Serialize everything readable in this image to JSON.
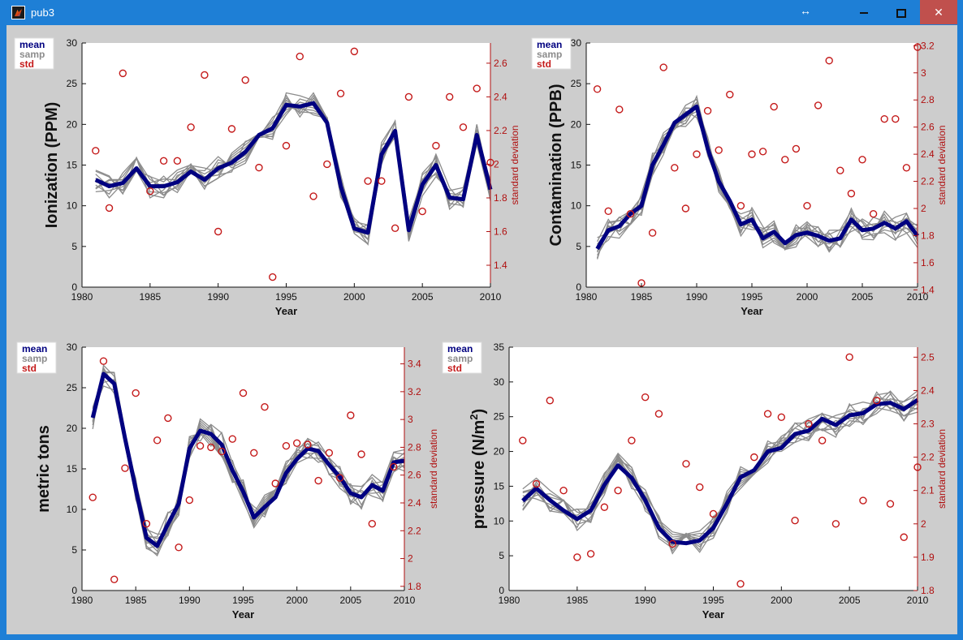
{
  "window": {
    "title": "pub3",
    "resize_icon": "↔",
    "close_label": "✕"
  },
  "chart_data": [
    {
      "type": "line",
      "ylabel": "Ionization (PPM)",
      "ylabel_sup": "",
      "ylabel_end": "",
      "xlabel": "Year",
      "y2label": "standard deviation",
      "xlim": [
        1980,
        2010
      ],
      "ylim": [
        0,
        30
      ],
      "y2lim": [
        1.27,
        2.72
      ],
      "xticks": [
        1980,
        1985,
        1990,
        1995,
        2000,
        2005,
        2010
      ],
      "yticks": [
        0,
        5,
        10,
        15,
        20,
        25,
        30
      ],
      "y2ticks": [
        1.4,
        1.6,
        1.8,
        2.0,
        2.2,
        2.4,
        2.6
      ],
      "y2ticklabels": [
        "1.4",
        "1.6",
        "1.8",
        "2",
        "2.2",
        "2.4",
        "2.6"
      ],
      "legend": [
        "mean",
        "samp",
        "std"
      ],
      "legend_position": "top-left",
      "colors": {
        "mean": "#000080",
        "samp": "#8c8c8c",
        "std": "#c41a1a"
      },
      "years": [
        1981,
        1982,
        1983,
        1984,
        1985,
        1986,
        1987,
        1988,
        1989,
        1990,
        1991,
        1992,
        1993,
        1994,
        1995,
        1996,
        1997,
        1998,
        1999,
        2000,
        2001,
        2002,
        2003,
        2004,
        2005,
        2006,
        2007,
        2008,
        2009,
        2010
      ],
      "series": [
        {
          "name": "mean",
          "values": [
            13.2,
            12.4,
            12.8,
            14.6,
            12.4,
            12.4,
            12.9,
            14.2,
            13.2,
            14.6,
            15.3,
            16.6,
            18.7,
            19.5,
            22.4,
            22.2,
            22.6,
            20.2,
            12.4,
            7.2,
            6.7,
            16.3,
            19.2,
            7.0,
            12.6,
            15.0,
            11.0,
            10.8,
            18.7,
            12.0
          ]
        },
        {
          "name": "std",
          "values": [
            2.08,
            1.74,
            2.54,
            null,
            1.84,
            2.02,
            2.02,
            2.22,
            2.53,
            1.6,
            2.21,
            2.5,
            1.98,
            1.33,
            2.11,
            2.64,
            1.81,
            2.0,
            2.42,
            2.67,
            1.9,
            1.9,
            1.62,
            2.4,
            1.72,
            2.11,
            2.4,
            2.22,
            2.45,
            2.01
          ]
        }
      ]
    },
    {
      "type": "line",
      "ylabel": "Contamination (PPB)",
      "ylabel_sup": "",
      "ylabel_end": "",
      "xlabel": "Year",
      "y2label": "standard deviation",
      "xlim": [
        1980,
        2010
      ],
      "ylim": [
        0,
        30
      ],
      "y2lim": [
        1.42,
        3.22
      ],
      "xticks": [
        1980,
        1985,
        1990,
        1995,
        2000,
        2005,
        2010
      ],
      "yticks": [
        0,
        5,
        10,
        15,
        20,
        25,
        30
      ],
      "y2ticks": [
        1.4,
        1.6,
        1.8,
        2.0,
        2.2,
        2.4,
        2.6,
        2.8,
        3.0,
        3.2
      ],
      "y2ticklabels": [
        "1.4",
        "1.6",
        "1.8",
        "2",
        "2.2",
        "2.4",
        "2.6",
        "2.8",
        "3",
        "3.2"
      ],
      "legend": [
        "mean",
        "samp",
        "std"
      ],
      "legend_position": "top-left",
      "colors": {
        "mean": "#000080",
        "samp": "#8c8c8c",
        "std": "#c41a1a"
      },
      "years": [
        1981,
        1982,
        1983,
        1984,
        1985,
        1986,
        1987,
        1988,
        1989,
        1990,
        1991,
        1992,
        1993,
        1994,
        1995,
        1996,
        1997,
        1998,
        1999,
        2000,
        2001,
        2002,
        2003,
        2004,
        2005,
        2006,
        2007,
        2008,
        2009,
        2010
      ],
      "series": [
        {
          "name": "mean",
          "values": [
            4.7,
            7.0,
            7.5,
            9.0,
            10.0,
            15.0,
            17.5,
            20.2,
            21.2,
            22.2,
            17.0,
            13.0,
            10.6,
            7.7,
            8.3,
            6.0,
            6.8,
            5.4,
            6.4,
            6.7,
            6.3,
            5.7,
            6.0,
            8.3,
            7.0,
            7.2,
            7.9,
            7.2,
            8.1,
            6.3
          ]
        },
        {
          "name": "std",
          "values": [
            2.88,
            1.98,
            2.73,
            1.96,
            1.45,
            1.82,
            3.04,
            2.3,
            2.0,
            2.4,
            2.72,
            2.43,
            2.84,
            2.02,
            2.4,
            2.42,
            2.75,
            2.36,
            2.44,
            2.02,
            2.76,
            3.09,
            2.28,
            2.11,
            2.36,
            1.96,
            2.66,
            2.66,
            2.3,
            3.19
          ]
        }
      ]
    },
    {
      "type": "line",
      "ylabel": "metric tons",
      "ylabel_sup": "",
      "ylabel_end": "",
      "xlabel": "Year",
      "y2label": "standard deviation",
      "xlim": [
        1980,
        2010
      ],
      "ylim": [
        0,
        30
      ],
      "y2lim": [
        1.77,
        3.52
      ],
      "xticks": [
        1980,
        1985,
        1990,
        1995,
        2000,
        2005,
        2010
      ],
      "yticks": [
        0,
        5,
        10,
        15,
        20,
        25,
        30
      ],
      "y2ticks": [
        1.8,
        2.0,
        2.2,
        2.4,
        2.6,
        2.8,
        3.0,
        3.2,
        3.4
      ],
      "y2ticklabels": [
        "1.8",
        "2",
        "2.2",
        "2.4",
        "2.6",
        "2.8",
        "3",
        "3.2",
        "3.4"
      ],
      "legend": [
        "mean",
        "samp",
        "std"
      ],
      "legend_position": "top-left",
      "colors": {
        "mean": "#000080",
        "samp": "#8c8c8c",
        "std": "#c41a1a"
      },
      "years": [
        1981,
        1982,
        1983,
        1984,
        1985,
        1986,
        1987,
        1988,
        1989,
        1990,
        1991,
        1992,
        1993,
        1994,
        1995,
        1996,
        1997,
        1998,
        1999,
        2000,
        2001,
        2002,
        2003,
        2004,
        2005,
        2006,
        2007,
        2008,
        2009,
        2010
      ],
      "series": [
        {
          "name": "mean",
          "values": [
            21.3,
            26.7,
            25.5,
            18.8,
            12.5,
            6.5,
            5.5,
            8.2,
            10.7,
            17.5,
            19.7,
            19.3,
            18.0,
            14.8,
            12.2,
            9.0,
            10.3,
            11.5,
            14.5,
            16.2,
            17.5,
            17.2,
            15.5,
            14.0,
            12.0,
            11.5,
            13.0,
            12.3,
            15.8,
            16.0
          ]
        },
        {
          "name": "std",
          "values": [
            2.44,
            3.42,
            1.85,
            2.65,
            3.19,
            2.25,
            2.85,
            3.01,
            2.08,
            2.42,
            2.81,
            2.8,
            2.77,
            2.86,
            3.19,
            2.76,
            3.09,
            2.54,
            2.81,
            2.83,
            2.82,
            2.56,
            2.76,
            2.58,
            3.03,
            2.75,
            2.25,
            null,
            2.66,
            null
          ]
        }
      ]
    },
    {
      "type": "line",
      "ylabel": "pressure (N/m",
      "ylabel_sup": "2",
      "ylabel_end": ")",
      "xlabel": "Year",
      "y2label": "standard deviation",
      "xlim": [
        1980,
        2010
      ],
      "ylim": [
        0,
        35
      ],
      "y2lim": [
        1.8,
        2.53
      ],
      "xticks": [
        1980,
        1985,
        1990,
        1995,
        2000,
        2005,
        2010
      ],
      "yticks": [
        0,
        5,
        10,
        15,
        20,
        25,
        30,
        35
      ],
      "y2ticks": [
        1.8,
        1.9,
        2.0,
        2.1,
        2.2,
        2.3,
        2.4,
        2.5
      ],
      "y2ticklabels": [
        "1.8",
        "1.9",
        "2",
        "2.1",
        "2.2",
        "2.3",
        "2.4",
        "2.5"
      ],
      "legend": [
        "mean",
        "samp",
        "std"
      ],
      "legend_position": "top-left",
      "colors": {
        "mean": "#000080",
        "samp": "#8c8c8c",
        "std": "#c41a1a"
      },
      "years": [
        1981,
        1982,
        1983,
        1984,
        1985,
        1986,
        1987,
        1988,
        1989,
        1990,
        1991,
        1992,
        1993,
        1994,
        1995,
        1996,
        1997,
        1998,
        1999,
        2000,
        2001,
        2002,
        2003,
        2004,
        2005,
        2006,
        2007,
        2008,
        2009,
        2010
      ],
      "series": [
        {
          "name": "mean",
          "values": [
            12.9,
            14.7,
            13.0,
            11.5,
            10.3,
            11.5,
            15.2,
            18.0,
            16.2,
            13.0,
            9.0,
            7.0,
            6.8,
            7.2,
            9.0,
            12.5,
            16.3,
            17.3,
            20.0,
            20.5,
            22.5,
            23.0,
            24.7,
            23.8,
            25.2,
            25.5,
            26.8,
            27.0,
            26.1,
            27.4
          ]
        },
        {
          "name": "std",
          "values": [
            2.25,
            2.12,
            2.37,
            2.1,
            1.9,
            1.91,
            2.05,
            2.1,
            2.25,
            2.38,
            2.33,
            1.94,
            2.18,
            2.11,
            2.03,
            null,
            1.82,
            2.2,
            2.33,
            2.32,
            2.01,
            2.3,
            2.25,
            2.0,
            2.5,
            2.07,
            2.37,
            2.06,
            1.96,
            2.17
          ]
        }
      ]
    }
  ]
}
